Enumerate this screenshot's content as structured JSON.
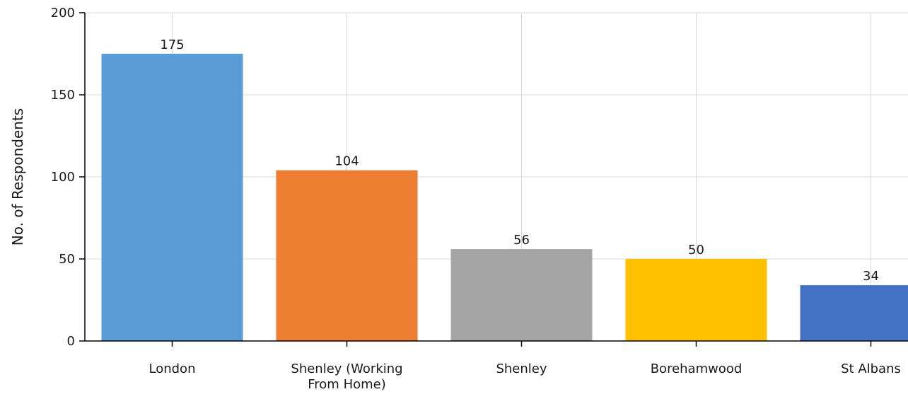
{
  "chart_data": {
    "type": "bar",
    "categories": [
      "London",
      "Shenley (Working From Home)",
      "Shenley",
      "Borehamwood",
      "St Albans"
    ],
    "category_label_lines": [
      [
        "London"
      ],
      [
        "Shenley (Working",
        "From Home)"
      ],
      [
        "Shenley"
      ],
      [
        "Borehamwood"
      ],
      [
        "St Albans"
      ]
    ],
    "values": [
      175,
      104,
      56,
      50,
      34
    ],
    "colors": [
      "#5b9bd5",
      "#ed7d31",
      "#a5a5a5",
      "#ffc000",
      "#4472c4"
    ],
    "ylabel": "No. of Respondents",
    "ylim": [
      0,
      200
    ],
    "yticks": [
      0,
      50,
      100,
      150,
      200
    ],
    "grid": true,
    "show_data_labels": true
  }
}
